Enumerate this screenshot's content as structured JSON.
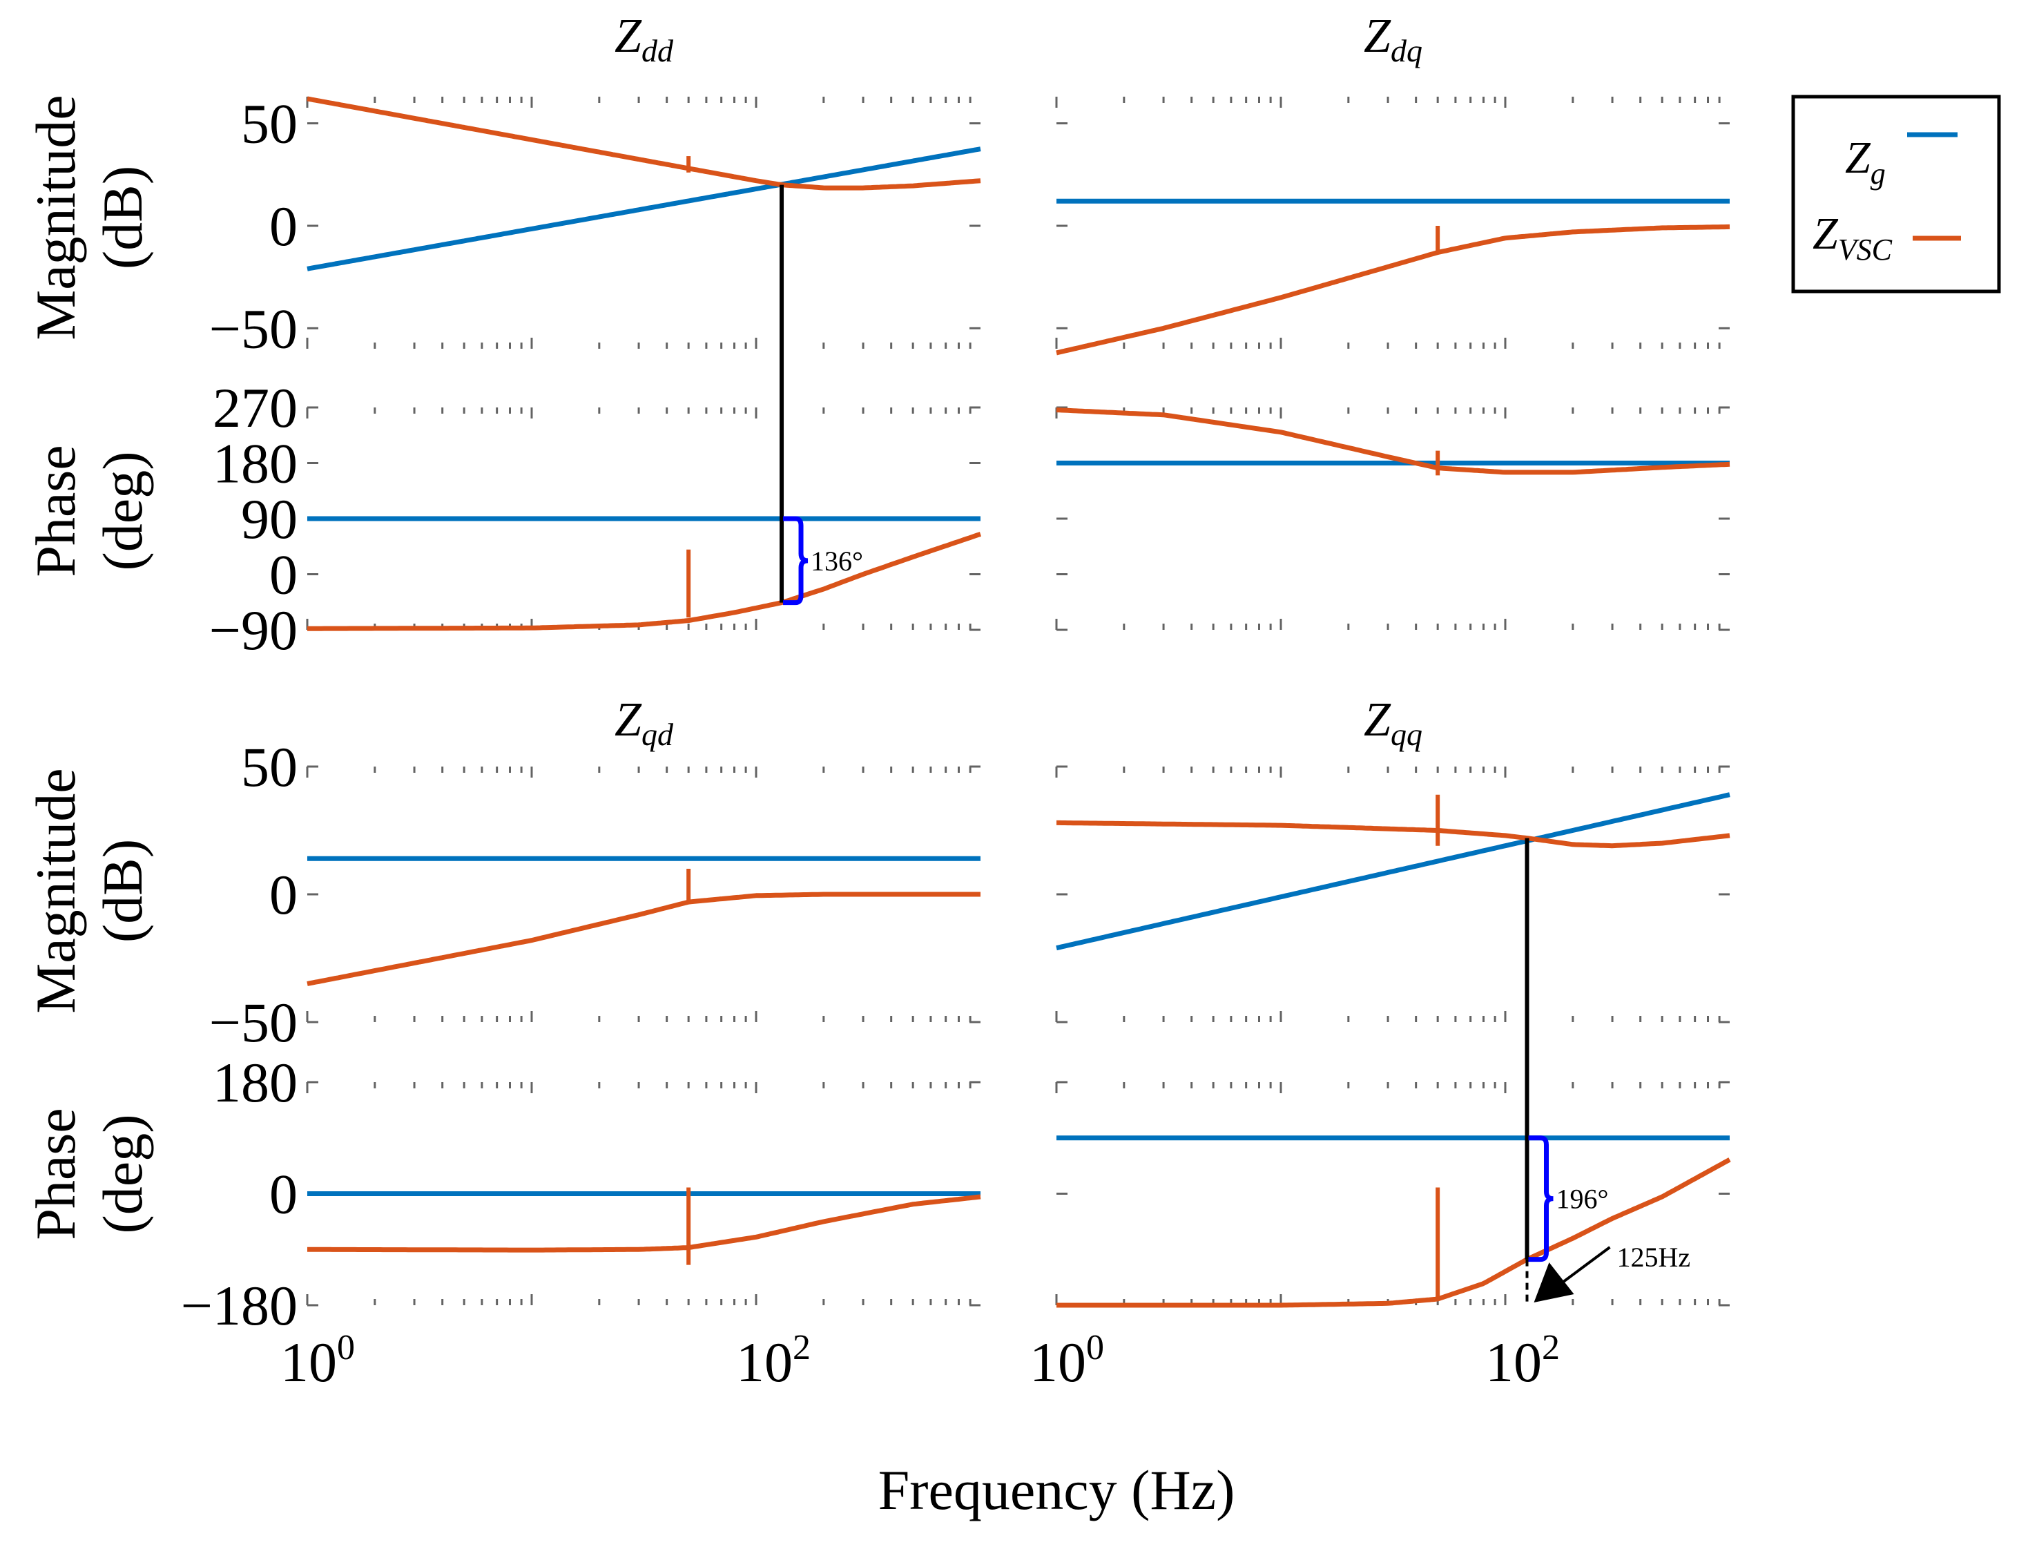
{
  "chart_data": {
    "type": "line",
    "x_scale": "log",
    "xlabel": "Frequency (Hz)",
    "xlim_hz": [
      1,
      1000
    ],
    "x_tick_labels": [
      {
        "base": "10",
        "exp": "0"
      },
      {
        "base": "10",
        "exp": "2"
      }
    ],
    "legend": {
      "position": "top-right",
      "entries": [
        {
          "name": "Z",
          "sub": "g",
          "color": "#0072BD"
        },
        {
          "name": "Z",
          "sub": "VSC",
          "color": "#D95319"
        }
      ]
    },
    "row_labels": {
      "magnitude": [
        "Magnitude",
        "(dB)"
      ],
      "phase": [
        "Phase",
        "(deg)"
      ]
    },
    "panels": [
      {
        "id": "dd",
        "title": "Z",
        "title_sub": "dd",
        "magnitude": {
          "ylim": [
            -60,
            63
          ],
          "yticks": [
            50,
            0,
            -50
          ],
          "ytick_labels": [
            "50",
            "0",
            "−50"
          ],
          "series": [
            {
              "name": "Zg",
              "x": [
                1,
                1000
              ],
              "y": [
                -21,
                37.5
              ]
            },
            {
              "name": "ZVSC",
              "x": [
                1,
                10,
                50,
                100,
                130,
                200,
                300,
                500,
                1000
              ],
              "y": [
                62,
                42,
                28,
                22,
                20,
                18.5,
                18.5,
                19.5,
                22
              ]
            }
          ],
          "spikes": [
            {
              "series": "ZVSC",
              "x": 50,
              "y0": 26,
              "y1": 34
            }
          ]
        },
        "phase": {
          "ylim": [
            -90,
            270
          ],
          "yticks": [
            270,
            180,
            90,
            0,
            -90
          ],
          "ytick_labels": [
            "270",
            "180",
            "90",
            "0",
            "−90"
          ],
          "series": [
            {
              "name": "Zg",
              "x": [
                1,
                1000
              ],
              "y": [
                90,
                90
              ]
            },
            {
              "name": "ZVSC",
              "x": [
                1,
                10,
                30,
                50,
                80,
                130,
                200,
                300,
                500,
                1000
              ],
              "y": [
                -88,
                -87,
                -82,
                -75,
                -62,
                -46,
                -24,
                0,
                28,
                65
              ]
            }
          ],
          "spikes": [
            {
              "series": "ZVSC",
              "x": 50,
              "y0": -70,
              "y1": 40
            }
          ]
        },
        "marker": {
          "x": 130,
          "mag": 20,
          "phase_top": 90,
          "phase_bottom": -46,
          "label": "136°"
        }
      },
      {
        "id": "dq",
        "title": "Z",
        "title_sub": "dq",
        "magnitude": {
          "ylim": [
            -60,
            63
          ],
          "yticks": [
            50,
            0,
            -50
          ],
          "ytick_labels": [
            "",
            "",
            ""
          ],
          "series": [
            {
              "name": "Zg",
              "x": [
                1,
                1000
              ],
              "y": [
                12,
                12
              ]
            },
            {
              "name": "ZVSC",
              "x": [
                1,
                3,
                10,
                30,
                50,
                100,
                200,
                500,
                1000
              ],
              "y": [
                -62,
                -50,
                -35,
                -20,
                -13,
                -6,
                -3,
                -1,
                -0.5
              ]
            }
          ],
          "spikes": [
            {
              "series": "ZVSC",
              "x": 50,
              "y0": -13,
              "y1": 0
            }
          ]
        },
        "phase": {
          "ylim": [
            -90,
            270
          ],
          "yticks": [
            270,
            180,
            90,
            0,
            -90
          ],
          "ytick_labels": [
            "",
            "",
            "",
            "",
            ""
          ],
          "series": [
            {
              "name": "Zg",
              "x": [
                1,
                1000
              ],
              "y": [
                180,
                180
              ]
            },
            {
              "name": "ZVSC",
              "x": [
                1,
                3,
                10,
                30,
                50,
                100,
                200,
                500,
                1000
              ],
              "y": [
                266,
                258,
                230,
                190,
                172,
                165,
                165,
                173,
                178
              ]
            }
          ],
          "spikes": [
            {
              "series": "ZVSC",
              "x": 50,
              "y0": 160,
              "y1": 200
            }
          ]
        }
      },
      {
        "id": "qd",
        "title": "Z",
        "title_sub": "qd",
        "magnitude": {
          "ylim": [
            -50,
            50
          ],
          "yticks": [
            50,
            0,
            -50
          ],
          "ytick_labels": [
            "50",
            "0",
            "−50"
          ],
          "series": [
            {
              "name": "Zg",
              "x": [
                1,
                1000
              ],
              "y": [
                14,
                14
              ]
            },
            {
              "name": "ZVSC",
              "x": [
                1,
                10,
                30,
                50,
                100,
                200,
                500,
                1000
              ],
              "y": [
                -35,
                -18,
                -8,
                -3,
                -0.5,
                0,
                0,
                0
              ]
            }
          ],
          "spikes": [
            {
              "series": "ZVSC",
              "x": 50,
              "y0": -3,
              "y1": 10
            }
          ]
        },
        "phase": {
          "ylim": [
            -180,
            180
          ],
          "yticks": [
            180,
            0,
            -180
          ],
          "ytick_labels": [
            "180",
            "0",
            "−180"
          ],
          "series": [
            {
              "name": "Zg",
              "x": [
                1,
                1000
              ],
              "y": [
                0,
                0
              ]
            },
            {
              "name": "ZVSC",
              "x": [
                1,
                10,
                30,
                50,
                100,
                200,
                500,
                1000
              ],
              "y": [
                -90,
                -91,
                -90,
                -87,
                -70,
                -45,
                -17,
                -5
              ]
            }
          ],
          "spikes": [
            {
              "series": "ZVSC",
              "x": 50,
              "y0": -115,
              "y1": 10
            }
          ]
        }
      },
      {
        "id": "qq",
        "title": "Z",
        "title_sub": "qq",
        "magnitude": {
          "ylim": [
            -50,
            50
          ],
          "yticks": [
            50,
            0,
            -50
          ],
          "ytick_labels": [
            "",
            "",
            ""
          ],
          "series": [
            {
              "name": "Zg",
              "x": [
                1,
                1000
              ],
              "y": [
                -21,
                39
              ]
            },
            {
              "name": "ZVSC",
              "x": [
                1,
                10,
                50,
                100,
                125,
                200,
                300,
                500,
                1000
              ],
              "y": [
                28,
                27,
                25,
                23,
                22,
                19.5,
                19,
                20,
                23
              ]
            }
          ],
          "spikes": [
            {
              "series": "ZVSC",
              "x": 50,
              "y0": 19,
              "y1": 39
            }
          ]
        },
        "phase": {
          "ylim": [
            -180,
            180
          ],
          "yticks": [
            180,
            0,
            -180
          ],
          "ytick_labels": [
            "",
            "",
            ""
          ],
          "series": [
            {
              "name": "Zg",
              "x": [
                1,
                1000
              ],
              "y": [
                90,
                90
              ]
            },
            {
              "name": "ZVSC",
              "x": [
                1,
                10,
                30,
                50,
                80,
                125,
                200,
                300,
                500,
                1000
              ],
              "y": [
                -180,
                -180,
                -177,
                -170,
                -145,
                -106,
                -72,
                -40,
                -5,
                55
              ]
            }
          ],
          "spikes": [
            {
              "series": "ZVSC",
              "x": 50,
              "y0": -170,
              "y1": 10
            }
          ]
        },
        "marker": {
          "x": 125,
          "mag": 22,
          "phase_top": 90,
          "phase_bottom": -106,
          "label": "196°",
          "freq_label": "125Hz"
        }
      }
    ]
  }
}
